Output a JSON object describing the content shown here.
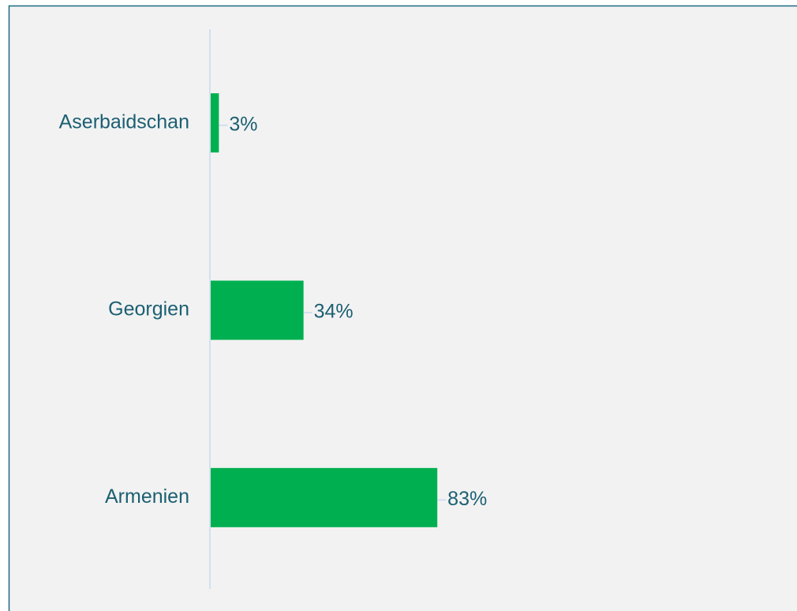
{
  "chart_data": {
    "type": "hbar",
    "categories": [
      "Aserbaidschan",
      "Georgien",
      "Armenien"
    ],
    "values": [
      3,
      34,
      83
    ],
    "value_labels": [
      "3%",
      "34%",
      "83%"
    ],
    "color": "#00b050"
  }
}
